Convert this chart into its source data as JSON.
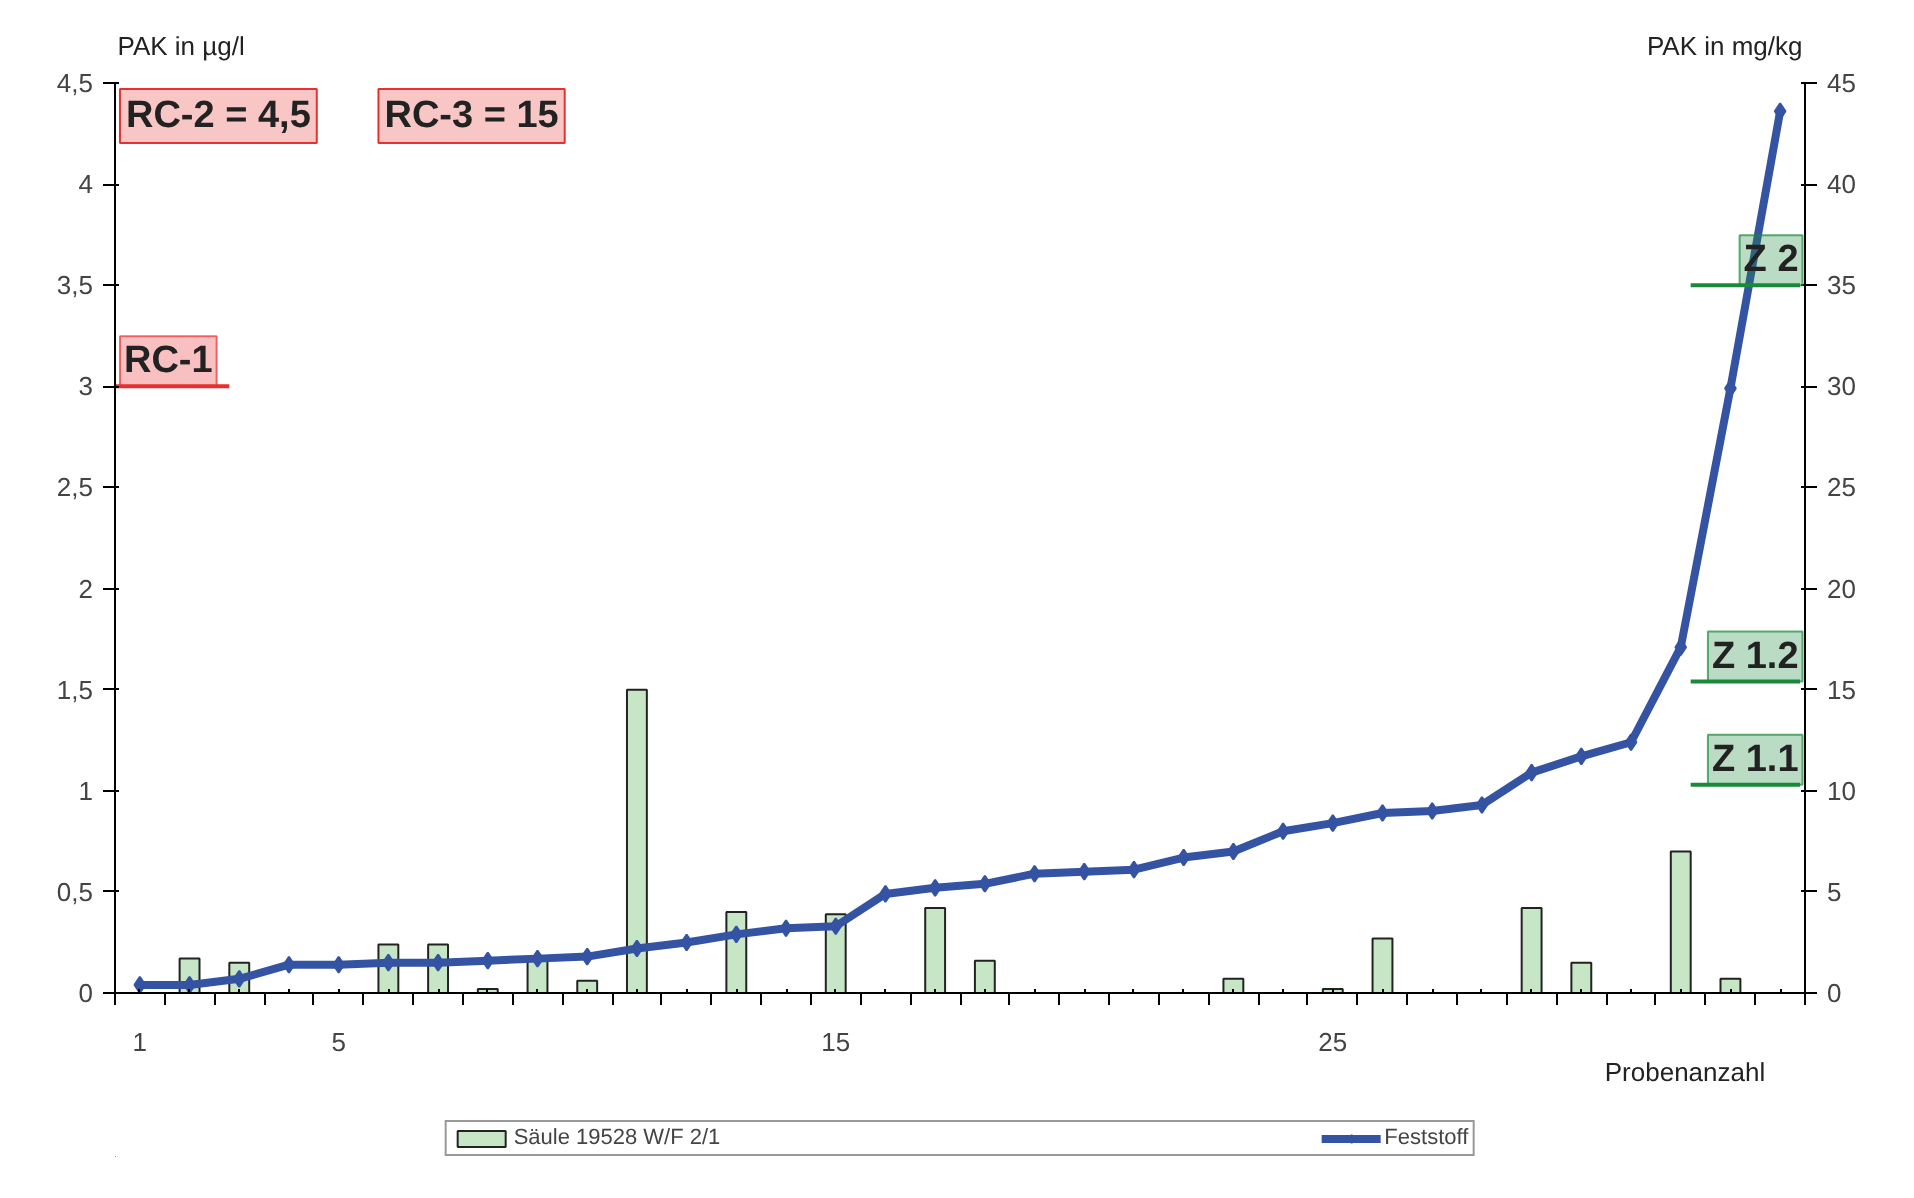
{
  "chart_data": {
    "type": "bar",
    "xlabel": "Probenanzahl",
    "ylabel": "PAK in  µg/l",
    "y2label": "PAK in mg/kg",
    "categories": [
      "1",
      null,
      null,
      null,
      "5",
      null,
      null,
      null,
      null,
      null,
      null,
      null,
      null,
      null,
      "15",
      null,
      null,
      null,
      null,
      null,
      null,
      null,
      null,
      null,
      "25",
      null,
      null,
      null,
      null,
      null,
      null,
      null,
      null,
      null
    ],
    "ylim": [
      0,
      4.5
    ],
    "yticks": [
      0,
      {
        "value": 0.5,
        "label": "0,5"
      },
      1,
      {
        "value": 1.5,
        "label": "1,5"
      },
      2,
      {
        "value": 2.5,
        "label": "2,5"
      },
      3,
      {
        "value": 3.5,
        "label": "3,5"
      },
      4,
      {
        "value": 4.5,
        "label": "4,5"
      }
    ],
    "y2lim": [
      0,
      45
    ],
    "y2ticks": [
      0,
      5,
      10,
      15,
      20,
      25,
      30,
      35,
      40,
      45
    ],
    "series": [
      {
        "name": "Säule 19528 W/F 2/1",
        "color": "#c6e6c6",
        "values": [
          null,
          0.17,
          0.15,
          null,
          null,
          0.24,
          0.24,
          0.02,
          0.18,
          0.06,
          1.5,
          null,
          0.4,
          null,
          0.39,
          null,
          0.42,
          0.16,
          null,
          null,
          null,
          null,
          0.07,
          null,
          0.02,
          0.27,
          null,
          null,
          0.42,
          0.15,
          null,
          0.7,
          0.07,
          null
        ]
      },
      {
        "name": "Feststoff",
        "type": "line",
        "axis": "y2",
        "color": "#3553a3",
        "values": [
          0.4,
          0.4,
          0.7,
          1.4,
          1.4,
          1.5,
          1.5,
          1.6,
          1.7,
          1.8,
          2.2,
          2.5,
          2.9,
          3.2,
          3.3,
          4.9,
          5.2,
          5.4,
          5.9,
          6.0,
          6.1,
          6.7,
          7.0,
          8.0,
          8.4,
          8.9,
          9.0,
          9.3,
          10.9,
          11.7,
          12.4,
          17.1,
          29.9,
          43.6
        ]
      }
    ],
    "ref_lines": [
      {
        "axis": "y",
        "value": 3,
        "label": "RC-1",
        "color": "#e83030"
      },
      {
        "axis": "y2",
        "value": 35,
        "label": "Z 2",
        "color": "#1a8a3a"
      },
      {
        "axis": "y2",
        "value": 15.4,
        "label": "Z 1.2",
        "color": "#1a8a3a"
      },
      {
        "axis": "y2",
        "value": 10.3,
        "label": "Z 1.1",
        "color": "#1a8a3a"
      }
    ],
    "annotations": [
      "RC-2 = 4,5",
      "RC-3 = 15"
    ],
    "legend": "bottom",
    "marker": "diamond",
    "grid": false
  }
}
